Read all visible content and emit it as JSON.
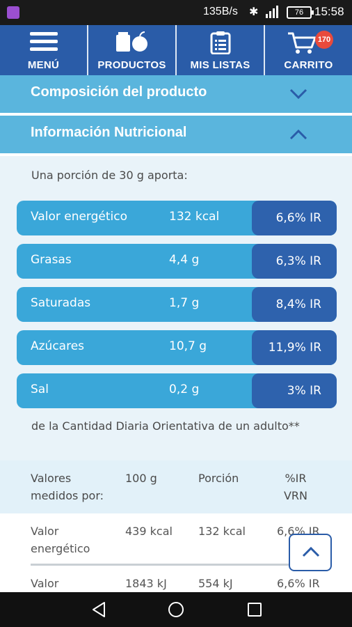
{
  "status_bar": {
    "speed": "135B/s",
    "battery": "76",
    "time": "15:58"
  },
  "nav": [
    {
      "label": "MENÚ",
      "icon": "hamburger-menu-icon"
    },
    {
      "label": "PRODUCTOS",
      "icon": "groceries-icon"
    },
    {
      "label": "MIS LISTAS",
      "icon": "clipboard-list-icon"
    },
    {
      "label": "CARRITO",
      "icon": "shopping-cart-icon",
      "badge": "170"
    }
  ],
  "sections": {
    "composition": {
      "title": "Composición del producto",
      "state": "collapsed"
    },
    "nutrition": {
      "title": "Información Nutricional",
      "state": "expanded"
    }
  },
  "nutrition": {
    "portion_note": "Una porción de 30 g aporta:",
    "rows": [
      {
        "name": "Valor energético",
        "amount": "132 kcal",
        "ir": "6,6% IR"
      },
      {
        "name": "Grasas",
        "amount": "4,4 g",
        "ir": "6,3% IR"
      },
      {
        "name": "Saturadas",
        "amount": "1,7 g",
        "ir": "8,4% IR"
      },
      {
        "name": "Azúcares",
        "amount": "10,7 g",
        "ir": "11,9% IR"
      },
      {
        "name": "Sal",
        "amount": "0,2 g",
        "ir": "3% IR"
      }
    ],
    "footnote": "de la Cantidad Diaria Orientativa de un adulto**"
  },
  "table": {
    "headers": {
      "label": "Valores medidos por:",
      "per100": "100 g",
      "portion": "Porción",
      "ir": "%IR VRN"
    },
    "rows": [
      {
        "label": "Valor energético",
        "per100": "439 kcal",
        "portion": "132 kcal",
        "ir": "6,6% IR"
      },
      {
        "label": "Valor",
        "per100": "1843 kJ",
        "portion": "554 kJ",
        "ir": "6,6% IR"
      }
    ]
  },
  "colors": {
    "nav_bg": "#2a5ca8",
    "accordion_bg": "#5ab5dd",
    "row_bg": "#3aa7d9",
    "ir_bg": "#2e62ad",
    "badge": "#e84a3c"
  }
}
